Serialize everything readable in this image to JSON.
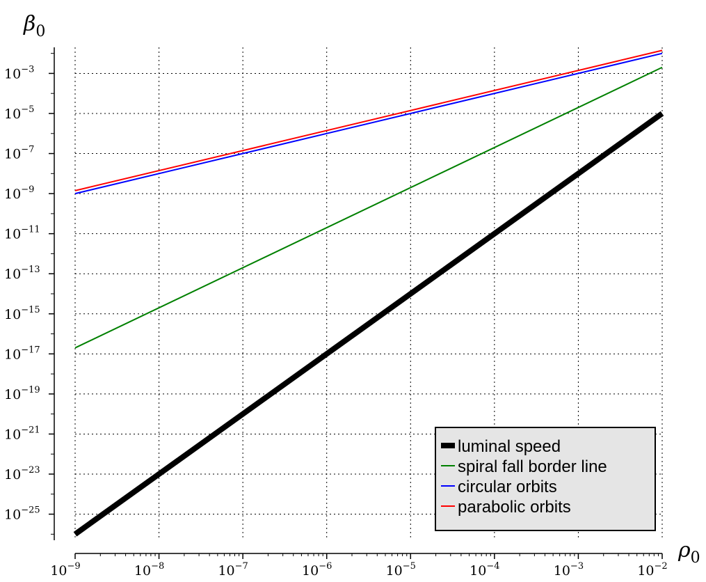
{
  "chart_data": {
    "type": "line",
    "title": "",
    "xlabel": "ρ",
    "xlabel_sub": "0",
    "ylabel": "β",
    "ylabel_sub": "0",
    "x_scale": "log",
    "y_scale": "log",
    "xlim": [
      1e-09,
      0.01
    ],
    "ylim": [
      5e-27,
      0.02
    ],
    "grid": true,
    "legend_position": "bottom-right",
    "x_ticks": [
      {
        "base": "10",
        "exp": "−9",
        "value": 1e-09
      },
      {
        "base": "10",
        "exp": "−8",
        "value": 1e-08
      },
      {
        "base": "10",
        "exp": "−7",
        "value": 1e-07
      },
      {
        "base": "10",
        "exp": "−6",
        "value": 1e-06
      },
      {
        "base": "10",
        "exp": "−5",
        "value": 1e-05
      },
      {
        "base": "10",
        "exp": "−4",
        "value": 0.0001
      },
      {
        "base": "10",
        "exp": "−3",
        "value": 0.001
      },
      {
        "base": "10",
        "exp": "−2",
        "value": 0.01
      }
    ],
    "y_ticks": [
      {
        "base": "10",
        "exp": "−3",
        "value": 0.001
      },
      {
        "base": "10",
        "exp": "−5",
        "value": 1e-05
      },
      {
        "base": "10",
        "exp": "−7",
        "value": 1e-07
      },
      {
        "base": "10",
        "exp": "−9",
        "value": 1e-09
      },
      {
        "base": "10",
        "exp": "−11",
        "value": 1e-11
      },
      {
        "base": "10",
        "exp": "−13",
        "value": 1e-13
      },
      {
        "base": "10",
        "exp": "−15",
        "value": 1e-15
      },
      {
        "base": "10",
        "exp": "−17",
        "value": 1e-17
      },
      {
        "base": "10",
        "exp": "−19",
        "value": 1e-19
      },
      {
        "base": "10",
        "exp": "−21",
        "value": 1e-21
      },
      {
        "base": "10",
        "exp": "−23",
        "value": 1e-23
      },
      {
        "base": "10",
        "exp": "−25",
        "value": 1e-25
      }
    ],
    "series": [
      {
        "name": "luminal speed",
        "color": "#000000",
        "weight": "heavy",
        "x": [
          1e-09,
          0.01
        ],
        "y": [
          1e-26,
          1e-05
        ]
      },
      {
        "name": "spiral fall border line",
        "color": "#008000",
        "weight": "normal",
        "x": [
          1e-09,
          0.01
        ],
        "y": [
          2e-17,
          0.002
        ]
      },
      {
        "name": "circular orbits",
        "color": "#0000ff",
        "weight": "normal",
        "x": [
          1e-09,
          0.01
        ],
        "y": [
          1e-09,
          0.01
        ]
      },
      {
        "name": "parabolic orbits",
        "color": "#ff0000",
        "weight": "normal",
        "x": [
          1e-09,
          0.01
        ],
        "y": [
          1.41e-09,
          0.0141
        ]
      }
    ]
  }
}
